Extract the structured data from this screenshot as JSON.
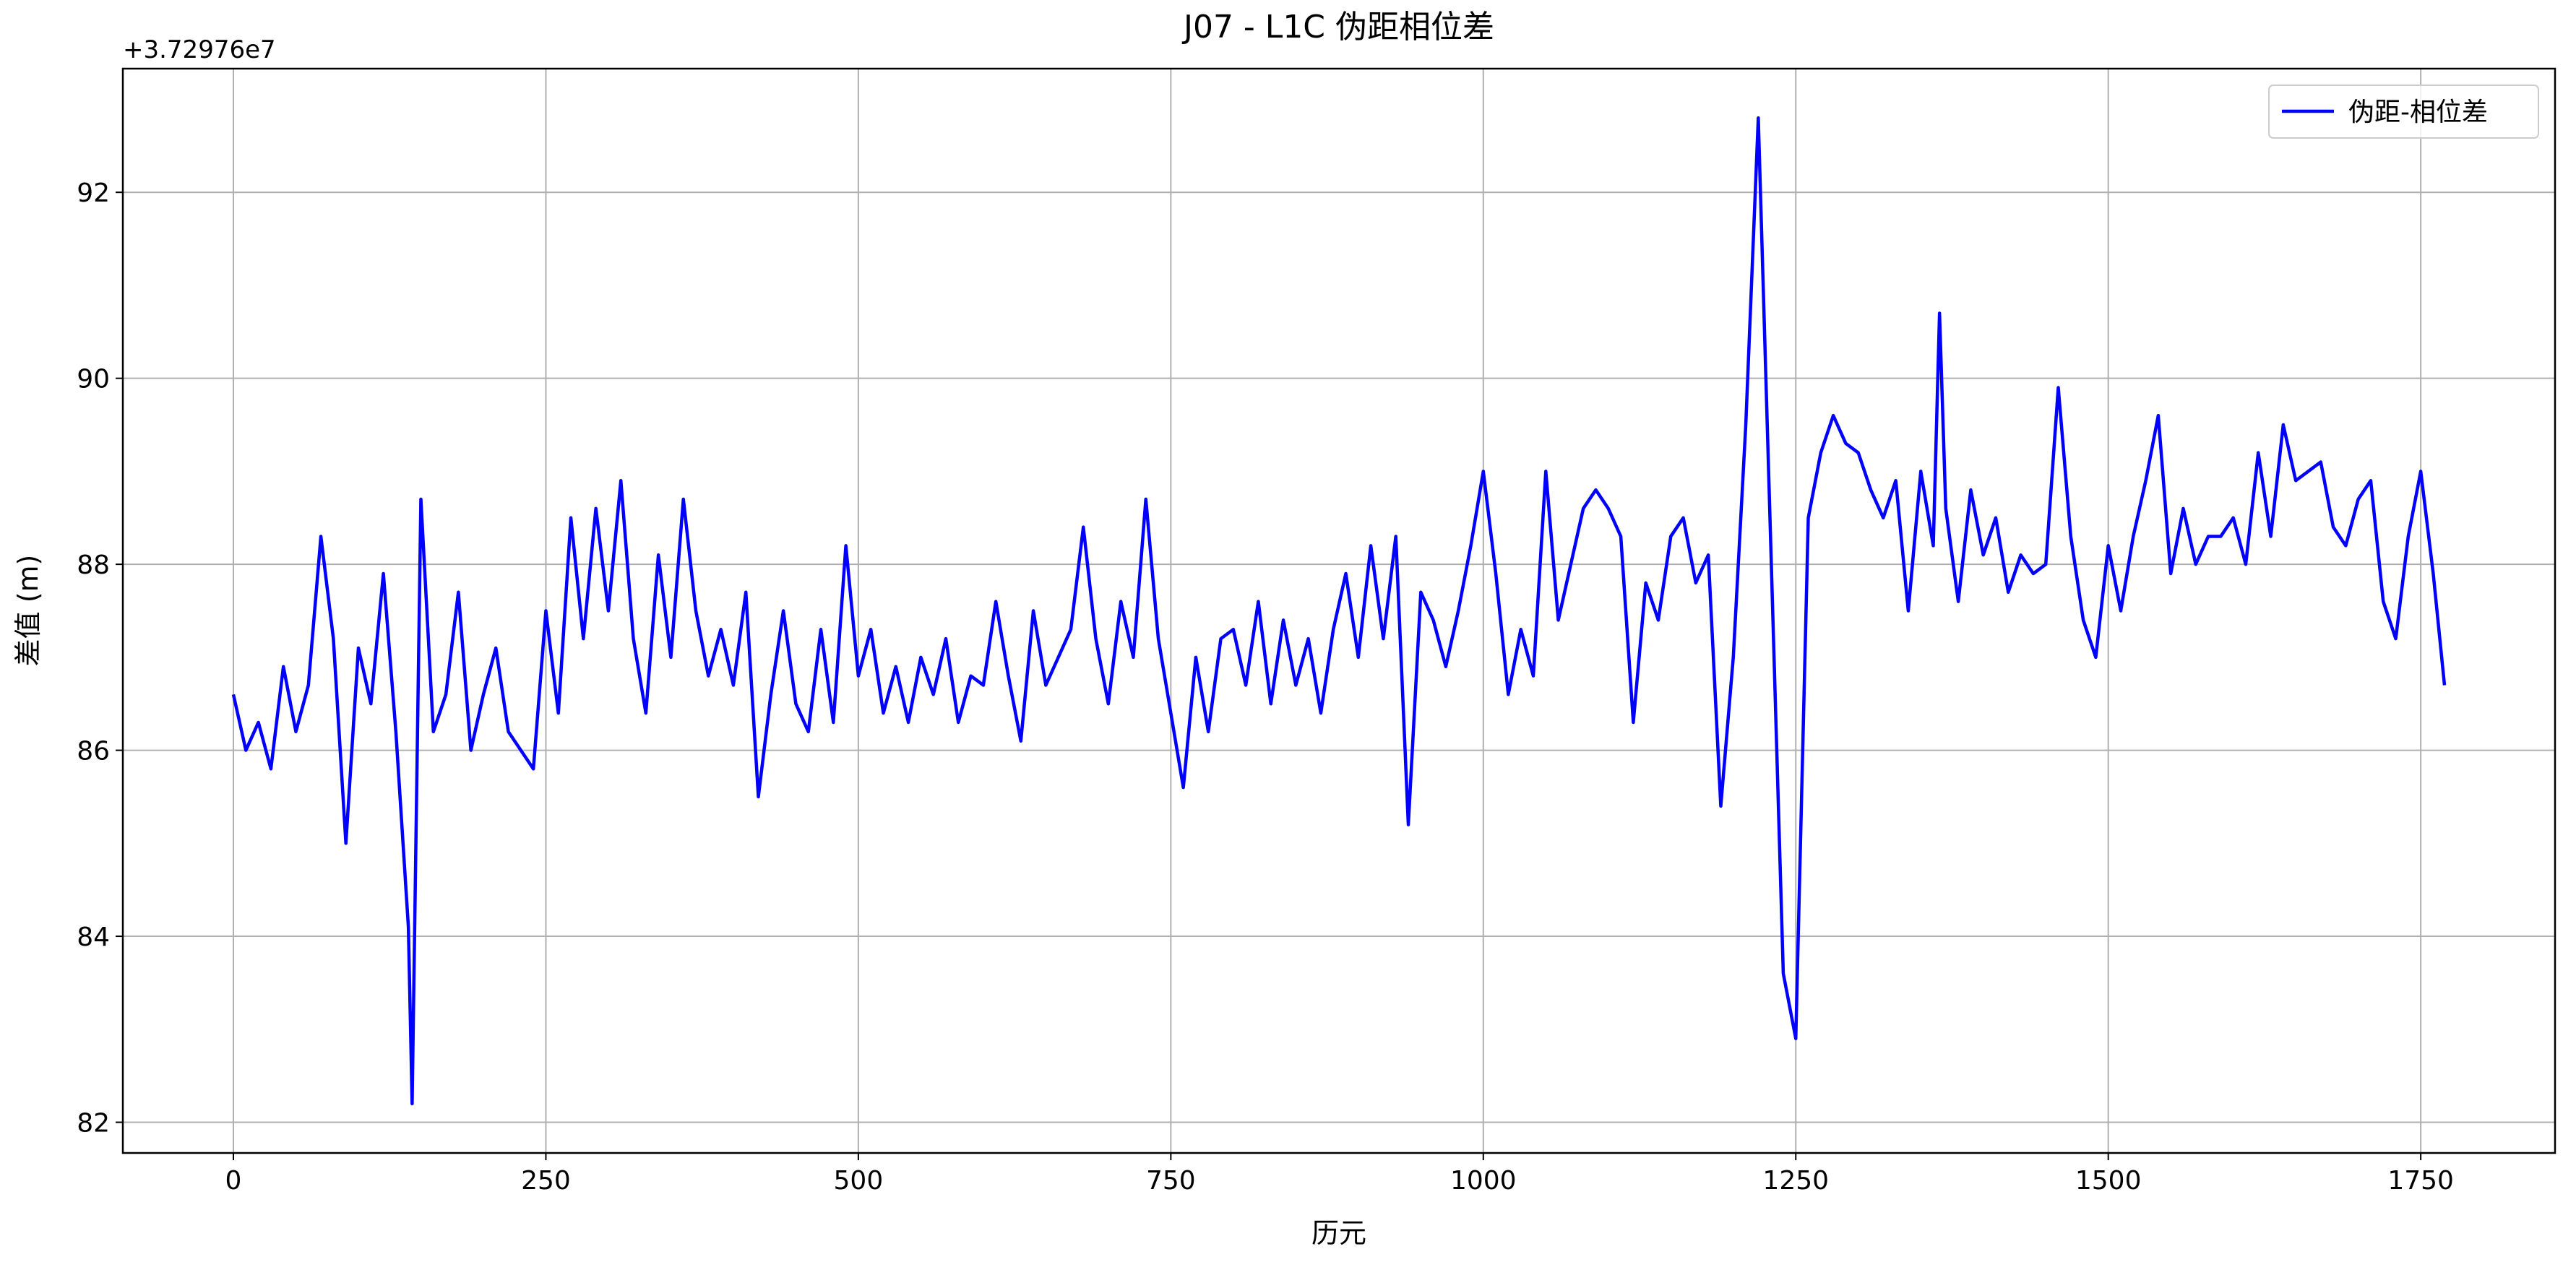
{
  "chart_data": {
    "type": "line",
    "title": "J07 - L1C 伪距相位差",
    "x_label": "历元",
    "y_label": "差值 (m)",
    "offset_text": "+3.72976e7",
    "x": [
      0,
      10,
      20,
      30,
      40,
      50,
      60,
      70,
      80,
      90,
      100,
      110,
      120,
      130,
      140,
      143,
      150,
      160,
      170,
      180,
      190,
      200,
      210,
      220,
      230,
      240,
      250,
      260,
      270,
      280,
      290,
      300,
      310,
      320,
      330,
      340,
      350,
      360,
      370,
      380,
      390,
      400,
      410,
      420,
      430,
      440,
      450,
      460,
      470,
      480,
      490,
      500,
      510,
      520,
      530,
      540,
      550,
      560,
      570,
      580,
      590,
      600,
      610,
      620,
      630,
      640,
      650,
      660,
      670,
      680,
      690,
      700,
      710,
      720,
      730,
      740,
      750,
      760,
      770,
      780,
      790,
      800,
      810,
      820,
      830,
      840,
      850,
      860,
      870,
      880,
      890,
      900,
      910,
      920,
      930,
      940,
      950,
      960,
      970,
      980,
      990,
      1000,
      1010,
      1020,
      1030,
      1040,
      1050,
      1060,
      1070,
      1080,
      1090,
      1100,
      1110,
      1120,
      1130,
      1140,
      1150,
      1160,
      1170,
      1180,
      1190,
      1200,
      1210,
      1220,
      1230,
      1240,
      1250,
      1260,
      1270,
      1280,
      1290,
      1300,
      1310,
      1320,
      1330,
      1340,
      1350,
      1360,
      1365,
      1370,
      1380,
      1390,
      1400,
      1410,
      1420,
      1430,
      1440,
      1450,
      1460,
      1470,
      1480,
      1490,
      1500,
      1510,
      1520,
      1530,
      1540,
      1550,
      1560,
      1570,
      1580,
      1590,
      1600,
      1610,
      1620,
      1630,
      1640,
      1650,
      1660,
      1670,
      1680,
      1690,
      1700,
      1710,
      1720,
      1730,
      1740,
      1750,
      1760,
      1769
    ],
    "series": [
      {
        "name": "伪距-相位差",
        "color": "#0000ff",
        "values": [
          86.6,
          86.0,
          86.3,
          85.8,
          86.9,
          86.2,
          86.7,
          88.3,
          87.2,
          85.0,
          87.1,
          86.5,
          87.9,
          86.2,
          84.1,
          82.2,
          88.7,
          86.2,
          86.6,
          87.7,
          86.0,
          86.6,
          87.1,
          86.2,
          86.0,
          85.8,
          87.5,
          86.4,
          88.5,
          87.2,
          88.6,
          87.5,
          88.9,
          87.2,
          86.4,
          88.1,
          87.0,
          88.7,
          87.5,
          86.8,
          87.3,
          86.7,
          87.7,
          85.5,
          86.6,
          87.5,
          86.5,
          86.2,
          87.3,
          86.3,
          88.2,
          86.8,
          87.3,
          86.4,
          86.9,
          86.3,
          87.0,
          86.6,
          87.2,
          86.3,
          86.8,
          86.7,
          87.6,
          86.8,
          86.1,
          87.5,
          86.7,
          87.0,
          87.3,
          88.4,
          87.2,
          86.5,
          87.6,
          87.0,
          88.7,
          87.2,
          86.4,
          85.6,
          87.0,
          86.2,
          87.2,
          87.3,
          86.7,
          87.6,
          86.5,
          87.4,
          86.7,
          87.2,
          86.4,
          87.3,
          87.9,
          87.0,
          88.2,
          87.2,
          88.3,
          85.2,
          87.7,
          87.4,
          86.9,
          87.5,
          88.2,
          89.0,
          87.9,
          86.6,
          87.3,
          86.8,
          89.0,
          87.4,
          88.0,
          88.6,
          88.8,
          88.6,
          88.3,
          86.3,
          87.8,
          87.4,
          88.3,
          88.5,
          87.8,
          88.1,
          85.4,
          87.0,
          89.5,
          92.8,
          88.2,
          83.6,
          82.9,
          88.5,
          89.2,
          89.6,
          89.3,
          89.2,
          88.8,
          88.5,
          88.9,
          87.5,
          89.0,
          88.2,
          90.7,
          88.6,
          87.6,
          88.8,
          88.1,
          88.5,
          87.7,
          88.1,
          87.9,
          88.0,
          89.9,
          88.3,
          87.4,
          87.0,
          88.2,
          87.5,
          88.3,
          88.9,
          89.6,
          87.9,
          88.6,
          88.0,
          88.3,
          88.3,
          88.5,
          88.0,
          89.2,
          88.3,
          89.5,
          88.9,
          89.0,
          89.1,
          88.4,
          88.2,
          88.7,
          88.9,
          87.6,
          87.2,
          88.3,
          89.0,
          87.9,
          86.7
        ]
      }
    ],
    "xlim": [
      -88.45,
      1857.45
    ],
    "xticks": [
      0,
      250,
      500,
      750,
      1000,
      1250,
      1500,
      1750
    ],
    "ylim": [
      81.67,
      93.33
    ],
    "yticks": [
      82,
      84,
      86,
      88,
      90,
      92
    ],
    "grid": true,
    "legend": "upper right"
  }
}
